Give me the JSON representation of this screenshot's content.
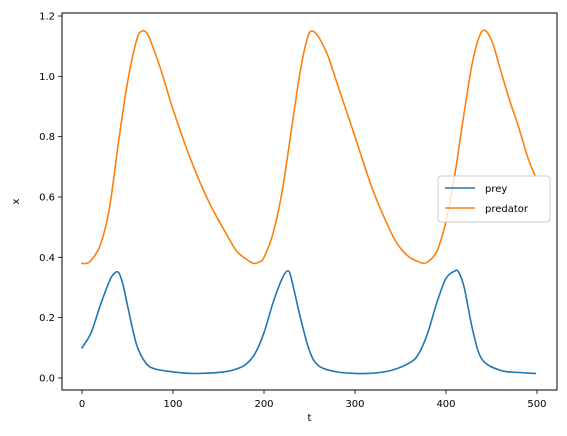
{
  "chart_data": {
    "type": "line",
    "title": "",
    "xlabel": "t",
    "ylabel": "x",
    "xlim": [
      -22,
      522
    ],
    "ylim": [
      -0.04,
      1.21
    ],
    "xticks": [
      0,
      100,
      200,
      300,
      400,
      500
    ],
    "xtick_labels": [
      "0",
      "100",
      "200",
      "300",
      "400",
      "500"
    ],
    "yticks": [
      0.0,
      0.2,
      0.4,
      0.6,
      0.8,
      1.0,
      1.2
    ],
    "ytick_labels": [
      "0.0",
      "0.2",
      "0.4",
      "0.6",
      "0.8",
      "1.0",
      "1.2"
    ],
    "grid": false,
    "legend_position": "center-right",
    "series": [
      {
        "name": "prey",
        "color": "#1f77b4",
        "x": [
          0,
          10,
          20,
          30,
          35,
          40,
          45,
          50,
          60,
          70,
          80,
          100,
          120,
          140,
          160,
          170,
          180,
          190,
          200,
          210,
          220,
          226,
          230,
          240,
          250,
          260,
          280,
          300,
          320,
          340,
          360,
          370,
          380,
          390,
          400,
          410,
          414,
          420,
          430,
          440,
          460,
          480,
          498
        ],
        "y": [
          0.1,
          0.15,
          0.24,
          0.32,
          0.345,
          0.35,
          0.31,
          0.24,
          0.11,
          0.05,
          0.03,
          0.02,
          0.015,
          0.016,
          0.022,
          0.03,
          0.045,
          0.08,
          0.15,
          0.25,
          0.33,
          0.355,
          0.33,
          0.2,
          0.09,
          0.04,
          0.02,
          0.015,
          0.016,
          0.025,
          0.05,
          0.08,
          0.15,
          0.25,
          0.33,
          0.355,
          0.35,
          0.3,
          0.15,
          0.06,
          0.025,
          0.018,
          0.015
        ]
      },
      {
        "name": "predator",
        "color": "#ff7f0e",
        "x": [
          0,
          5,
          10,
          20,
          30,
          40,
          50,
          60,
          66,
          72,
          80,
          90,
          100,
          120,
          140,
          160,
          170,
          180,
          188,
          195,
          200,
          210,
          220,
          230,
          240,
          248,
          253,
          260,
          270,
          280,
          290,
          300,
          320,
          340,
          350,
          360,
          370,
          375,
          380,
          390,
          400,
          410,
          420,
          430,
          440,
          450,
          460,
          470,
          480,
          490,
          498
        ],
        "y": [
          0.38,
          0.38,
          0.39,
          0.44,
          0.56,
          0.78,
          0.98,
          1.12,
          1.15,
          1.14,
          1.08,
          0.99,
          0.89,
          0.72,
          0.58,
          0.47,
          0.42,
          0.395,
          0.38,
          0.385,
          0.4,
          0.48,
          0.62,
          0.82,
          1.02,
          1.13,
          1.15,
          1.13,
          1.07,
          0.98,
          0.89,
          0.8,
          0.62,
          0.48,
          0.43,
          0.4,
          0.385,
          0.38,
          0.385,
          0.42,
          0.52,
          0.68,
          0.88,
          1.06,
          1.15,
          1.12,
          1.02,
          0.92,
          0.83,
          0.73,
          0.67
        ]
      }
    ]
  }
}
